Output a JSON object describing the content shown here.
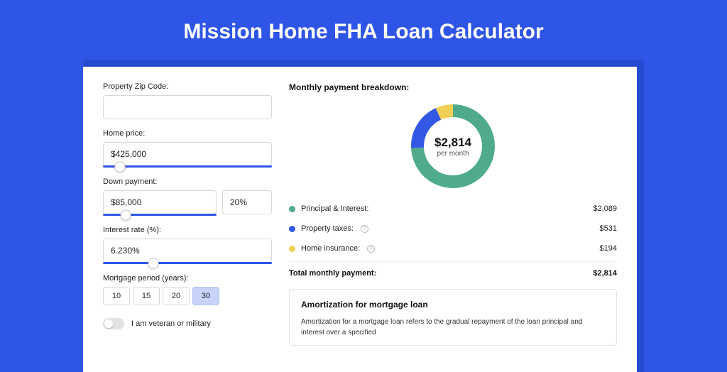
{
  "page": {
    "title": "Mission Home FHA Loan Calculator",
    "background_color": "#2f55e6",
    "shadow_color": "#244bd1",
    "card_bg": "#ffffff"
  },
  "form": {
    "zip": {
      "label": "Property Zip Code:",
      "value": ""
    },
    "home_price": {
      "label": "Home price:",
      "value": "$425,000",
      "slider_pct": 10
    },
    "down_payment": {
      "label": "Down payment:",
      "amount": "$85,000",
      "percent": "20%",
      "slider_pct": 20
    },
    "interest_rate": {
      "label": "Interest rate (%):",
      "value": "6.230%",
      "slider_pct": 30
    },
    "mortgage_period": {
      "label": "Mortgage period (years):",
      "options": [
        "10",
        "15",
        "20",
        "30"
      ],
      "active_index": 3
    },
    "veteran": {
      "label": "I am veteran or military",
      "on": false
    }
  },
  "breakdown": {
    "title": "Monthly payment breakdown:",
    "center_amount": "$2,814",
    "center_sub": "per month",
    "donut": {
      "type": "donut",
      "circumference": 314.16,
      "stroke_width": 18,
      "radius": 50,
      "segments": [
        {
          "name": "Principal & Interest",
          "value": 2089,
          "color": "#4fab8a",
          "fraction": 0.742
        },
        {
          "name": "Property taxes",
          "value": 531,
          "color": "#3358e6",
          "fraction": 0.189
        },
        {
          "name": "Home insurance",
          "value": 194,
          "color": "#efcf55",
          "fraction": 0.069
        }
      ]
    },
    "items": [
      {
        "label": "Principal & Interest:",
        "value": "$2,089",
        "color": "#4fab8a",
        "info": false
      },
      {
        "label": "Property taxes:",
        "value": "$531",
        "color": "#3358e6",
        "info": true
      },
      {
        "label": "Home insurance:",
        "value": "$194",
        "color": "#efcf55",
        "info": true
      }
    ],
    "total": {
      "label": "Total monthly payment:",
      "value": "$2,814"
    }
  },
  "amortization": {
    "title": "Amortization for mortgage loan",
    "body": "Amortization for a mortgage loan refers to the gradual repayment of the loan principal and interest over a specified"
  }
}
